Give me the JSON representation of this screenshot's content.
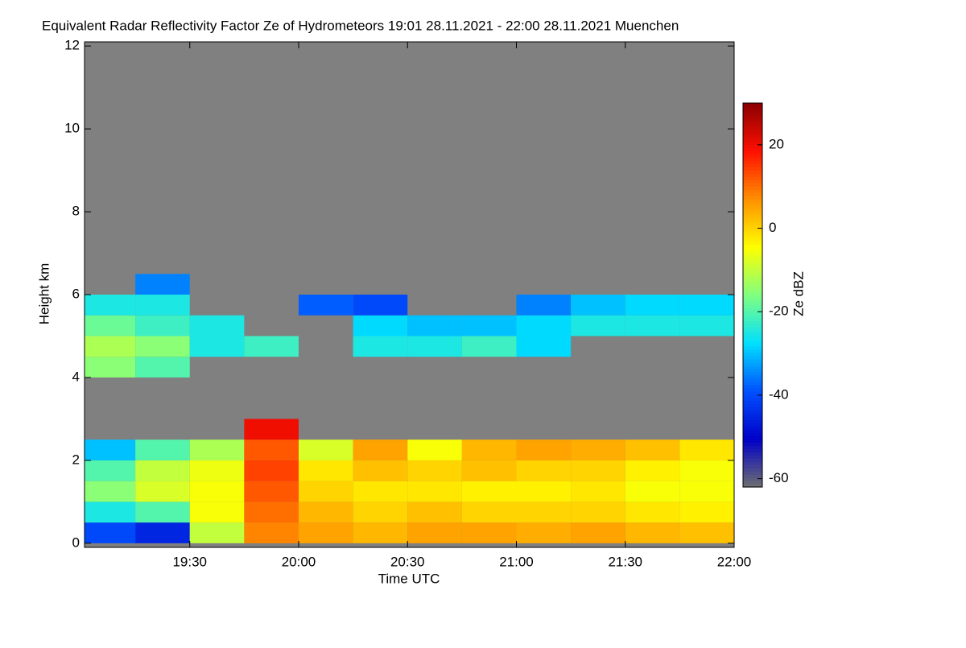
{
  "chart_data": {
    "type": "heatmap",
    "title": "Equivalent Radar Reflectivity Factor Ze of Hydrometeors   19:01 28.11.2021 - 22:00 28.11.2021 Muenchen",
    "x_label": "Time UTC",
    "y_label": "Height km",
    "colorbar_label": "Ze dBZ",
    "xlim": [
      19.0167,
      22.0
    ],
    "xticks": [
      {
        "value": 19.5,
        "label": "19:30"
      },
      {
        "value": 20.0,
        "label": "20:00"
      },
      {
        "value": 20.5,
        "label": "20:30"
      },
      {
        "value": 21.0,
        "label": "21:00"
      },
      {
        "value": 21.5,
        "label": "21:30"
      },
      {
        "value": 22.0,
        "label": "22:00"
      }
    ],
    "ylim": [
      -0.1,
      12.1
    ],
    "yticks": [
      0,
      2,
      4,
      6,
      8,
      10,
      12
    ],
    "zlim": [
      -62,
      30
    ],
    "zticks": [
      -60,
      -40,
      -20,
      0,
      20
    ],
    "colormap": [
      "#707070",
      "#0000c8",
      "#0050ff",
      "#00e0ff",
      "#80ff80",
      "#ffff00",
      "#ff9000",
      "#ff1000",
      "#8b0000"
    ],
    "no_data_color": "#808080",
    "x": [
      19.125,
      19.375,
      19.625,
      19.875,
      20.125,
      20.375,
      20.625,
      20.875,
      21.125,
      21.375,
      21.625,
      21.875
    ],
    "y": [
      0.25,
      0.75,
      1.25,
      1.75,
      2.25,
      2.75,
      3.25,
      3.75,
      4.25,
      4.75,
      5.25,
      5.75,
      6.25
    ],
    "values": [
      [
        -40,
        -45,
        -10,
        8,
        5,
        3,
        5,
        5,
        4,
        5,
        3,
        2
      ],
      [
        -25,
        -20,
        -5,
        10,
        3,
        0,
        2,
        0,
        0,
        0,
        -2,
        -3
      ],
      [
        -15,
        -8,
        -5,
        12,
        0,
        -2,
        -2,
        -3,
        -3,
        -2,
        -5,
        -5
      ],
      [
        -20,
        -10,
        -6,
        14,
        -2,
        2,
        0,
        2,
        0,
        0,
        -3,
        -5
      ],
      [
        -30,
        -20,
        -12,
        12,
        -8,
        5,
        -5,
        3,
        5,
        4,
        2,
        -2
      ],
      [
        null,
        null,
        null,
        20,
        null,
        null,
        null,
        null,
        null,
        null,
        null,
        null
      ],
      [
        null,
        null,
        null,
        null,
        null,
        null,
        null,
        null,
        null,
        null,
        null,
        null
      ],
      [
        null,
        null,
        null,
        null,
        null,
        null,
        null,
        null,
        null,
        null,
        null,
        null
      ],
      [
        -15,
        -20,
        null,
        null,
        null,
        null,
        null,
        null,
        null,
        null,
        null,
        null
      ],
      [
        -12,
        -15,
        -25,
        -22,
        null,
        -25,
        -25,
        -22,
        -28,
        null,
        null,
        null
      ],
      [
        -18,
        -22,
        -25,
        null,
        null,
        -28,
        -30,
        -30,
        -28,
        -25,
        -25,
        -25
      ],
      [
        -25,
        -25,
        null,
        null,
        -38,
        -40,
        null,
        null,
        -35,
        -30,
        -28,
        -28
      ],
      [
        null,
        -35,
        null,
        null,
        null,
        null,
        null,
        null,
        null,
        null,
        null,
        null
      ]
    ]
  }
}
